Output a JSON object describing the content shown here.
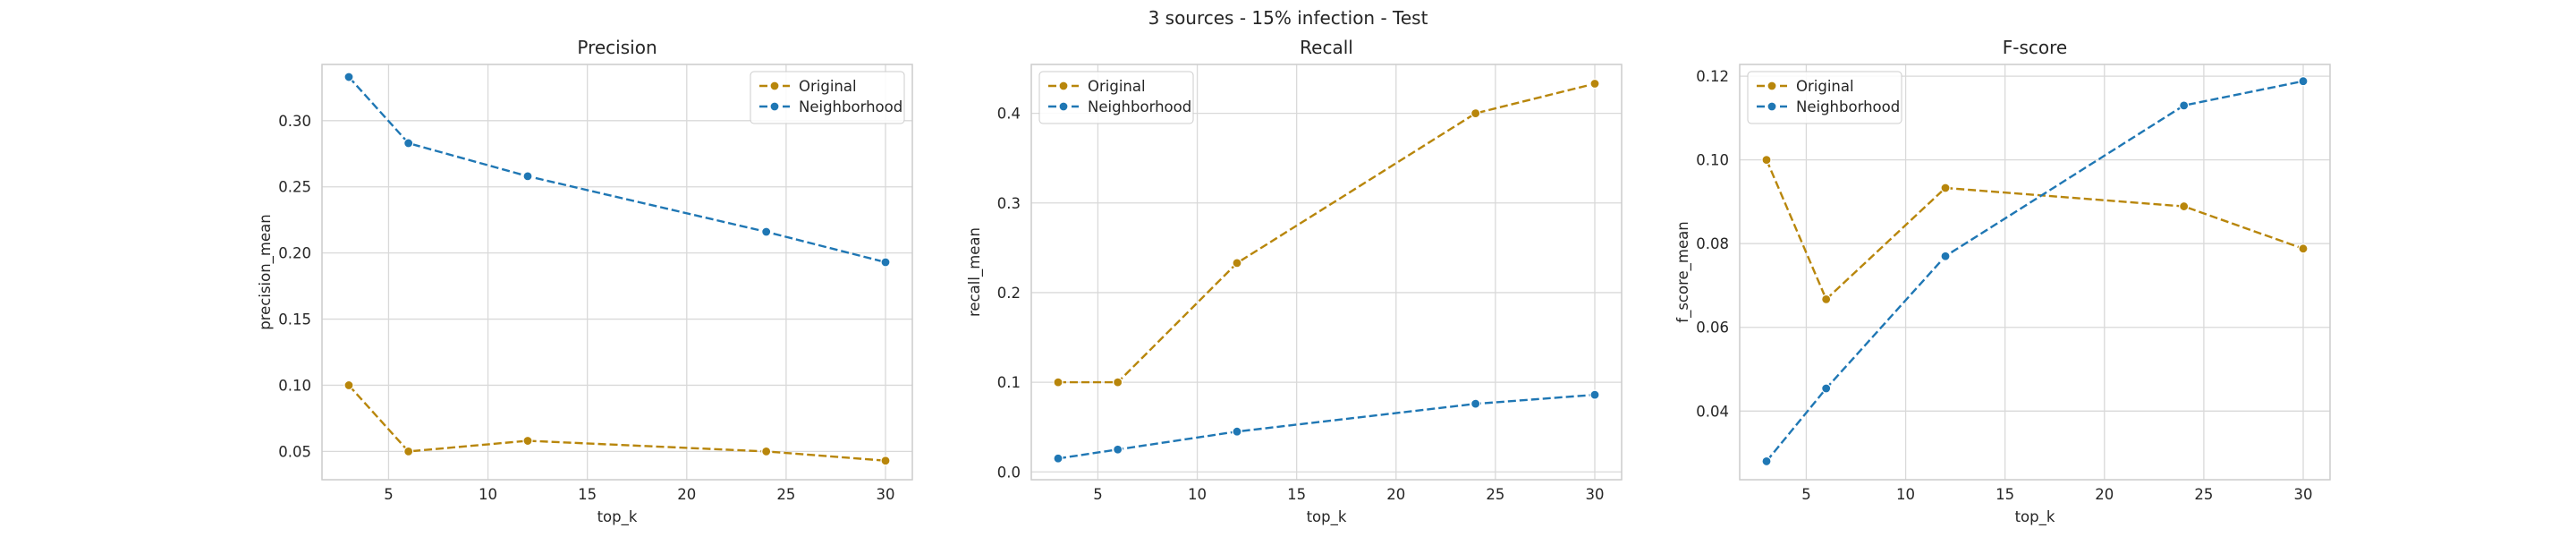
{
  "figure": {
    "title": "3 sources - 15% infection - Test"
  },
  "colors": {
    "original": "#b8860b",
    "neighborhood": "#1f77b4",
    "grid": "#d9d9d9",
    "spine": "#cccccc"
  },
  "chart_data": [
    {
      "type": "line",
      "title": "Precision",
      "xlabel": "top_k",
      "ylabel": "precision_mean",
      "x": [
        3,
        6,
        12,
        24,
        30
      ],
      "xlim": [
        1.65,
        31.35
      ],
      "ylim": [
        0.0286,
        0.3425
      ],
      "xticks": [
        5,
        10,
        15,
        20,
        25,
        30
      ],
      "yticks": [
        0.05,
        0.1,
        0.15,
        0.2,
        0.25,
        0.3
      ],
      "ytick_labels": [
        "0.05",
        "0.10",
        "0.15",
        "0.20",
        "0.25",
        "0.30"
      ],
      "legend": "top-right",
      "grid": true,
      "series": [
        {
          "name": "Original",
          "values": [
            0.1,
            0.05,
            0.058,
            0.05,
            0.043
          ]
        },
        {
          "name": "Neighborhood",
          "values": [
            0.333,
            0.283,
            0.258,
            0.216,
            0.193
          ]
        }
      ]
    },
    {
      "type": "line",
      "title": "Recall",
      "xlabel": "top_k",
      "ylabel": "recall_mean",
      "x": [
        3,
        6,
        12,
        24,
        30
      ],
      "xlim": [
        1.65,
        31.35
      ],
      "ylim": [
        -0.0087,
        0.4545
      ],
      "xticks": [
        5,
        10,
        15,
        20,
        25,
        30
      ],
      "yticks": [
        0.0,
        0.1,
        0.2,
        0.3,
        0.4
      ],
      "ytick_labels": [
        "0.0",
        "0.1",
        "0.2",
        "0.3",
        "0.4"
      ],
      "legend": "top-left",
      "grid": true,
      "series": [
        {
          "name": "Original",
          "values": [
            0.1,
            0.1,
            0.233,
            0.4,
            0.433
          ]
        },
        {
          "name": "Neighborhood",
          "values": [
            0.015,
            0.025,
            0.045,
            0.076,
            0.086
          ]
        }
      ]
    },
    {
      "type": "line",
      "title": "F-score",
      "xlabel": "top_k",
      "ylabel": "f_score_mean",
      "x": [
        3,
        6,
        12,
        24,
        30
      ],
      "xlim": [
        1.65,
        31.35
      ],
      "ylim": [
        0.0236,
        0.1228
      ],
      "xticks": [
        5,
        10,
        15,
        20,
        25,
        30
      ],
      "yticks": [
        0.04,
        0.06,
        0.08,
        0.1,
        0.12
      ],
      "ytick_labels": [
        "0.04",
        "0.06",
        "0.08",
        "0.10",
        "0.12"
      ],
      "legend": "top-left",
      "grid": true,
      "series": [
        {
          "name": "Original",
          "values": [
            0.1,
            0.0667,
            0.0933,
            0.0889,
            0.0788
          ]
        },
        {
          "name": "Neighborhood",
          "values": [
            0.028,
            0.0454,
            0.077,
            0.113,
            0.1188
          ]
        }
      ]
    }
  ]
}
